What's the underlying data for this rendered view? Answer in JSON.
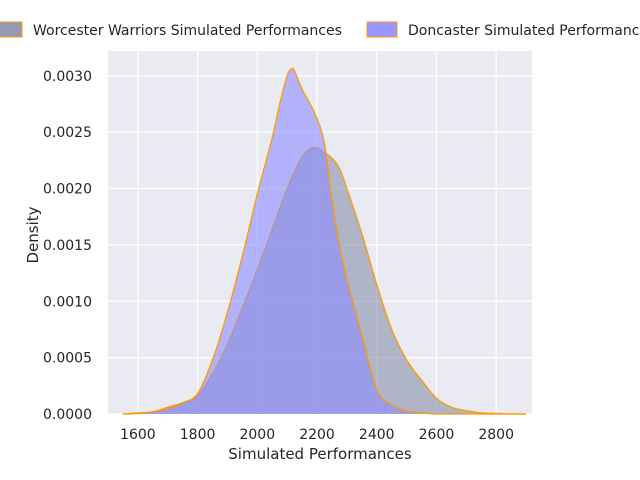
{
  "chart_data": {
    "type": "area",
    "title": "",
    "xlabel": "Simulated Performances",
    "ylabel": "Density",
    "xlim": [
      1500,
      2920
    ],
    "ylim": [
      0,
      0.00322
    ],
    "x_ticks": [
      1600,
      1800,
      2000,
      2200,
      2400,
      2600,
      2800
    ],
    "x_tick_labels": [
      "1600",
      "1800",
      "2000",
      "2200",
      "2400",
      "2600",
      "2800"
    ],
    "y_ticks": [
      0,
      0.0005,
      0.001,
      0.0015,
      0.002,
      0.0025,
      0.003
    ],
    "y_tick_labels": [
      "0.0000",
      "0.0005",
      "0.0010",
      "0.0015",
      "0.0020",
      "0.0025",
      "0.0030"
    ],
    "grid": true,
    "legend_position": "top",
    "outline_color": "#ff9900",
    "background_color": "#eaeaf2",
    "series": [
      {
        "name": "Worcester Warriors Simulated Performances",
        "color": "#8890aa",
        "x": [
          1550,
          1600,
          1650,
          1700,
          1750,
          1800,
          1850,
          1900,
          1950,
          2000,
          2050,
          2100,
          2125,
          2150,
          2175,
          2200,
          2225,
          2250,
          2275,
          2300,
          2350,
          2400,
          2450,
          2500,
          2550,
          2600,
          2650,
          2700,
          2750,
          2800,
          2850,
          2900
        ],
        "y": [
          0,
          1e-05,
          2e-05,
          6e-05,
          0.0001,
          0.00016,
          0.00036,
          0.00062,
          0.00094,
          0.00128,
          0.00164,
          0.002,
          0.00215,
          0.00228,
          0.00235,
          0.00236,
          0.00232,
          0.00227,
          0.00218,
          0.002,
          0.0016,
          0.00115,
          0.00075,
          0.00048,
          0.0003,
          0.00014,
          6e-05,
          3e-05,
          1e-05,
          5e-06,
          0,
          0
        ]
      },
      {
        "name": "Doncaster Simulated Performances",
        "color": "#8c8cff",
        "x": [
          1550,
          1600,
          1650,
          1700,
          1750,
          1800,
          1850,
          1900,
          1950,
          2000,
          2050,
          2075,
          2100,
          2115,
          2125,
          2150,
          2175,
          2200,
          2225,
          2250,
          2275,
          2300,
          2350,
          2400,
          2450,
          2500,
          2550,
          2600,
          2650,
          2700,
          2750,
          2800,
          2850,
          2900
        ],
        "y": [
          0,
          5e-06,
          2e-05,
          5e-05,
          0.0001,
          0.00018,
          0.00048,
          0.0009,
          0.0014,
          0.00195,
          0.00245,
          0.00275,
          0.003,
          0.00306,
          0.00304,
          0.00288,
          0.00276,
          0.00262,
          0.0024,
          0.0019,
          0.0015,
          0.0012,
          0.0007,
          0.00022,
          8e-05,
          3e-05,
          1e-05,
          0,
          0,
          0,
          0,
          0,
          0,
          0
        ]
      }
    ]
  }
}
